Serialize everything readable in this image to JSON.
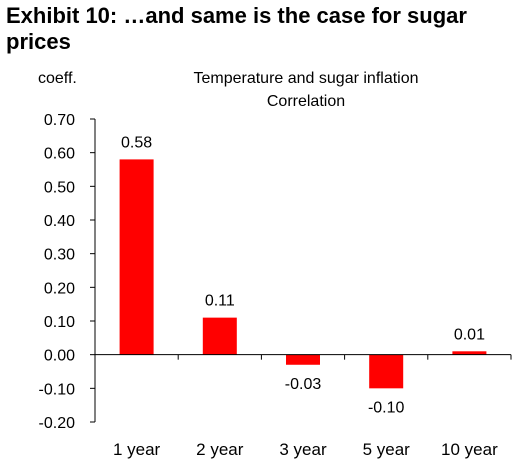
{
  "exhibit_title": "Exhibit 10: …and same is the case for sugar prices",
  "chart_data": {
    "type": "bar",
    "title": "Temperature and sugar inflation",
    "subtitle": "Correlation",
    "ylabel": "coeff.",
    "xlabel": "",
    "categories": [
      "1 year",
      "2 year",
      "3 year",
      "5 year",
      "10 year"
    ],
    "values": [
      0.58,
      0.11,
      -0.03,
      -0.1,
      0.01
    ],
    "data_labels": [
      "0.58",
      "0.11",
      "-0.03",
      "-0.10",
      "0.01"
    ],
    "ylim": [
      -0.2,
      0.7
    ],
    "yticks": [
      "0.70",
      "0.60",
      "0.50",
      "0.40",
      "0.30",
      "0.20",
      "0.10",
      "0.00",
      "-0.10",
      "-0.20"
    ],
    "bar_color": "#ff0000",
    "grid": false,
    "legend": "none"
  }
}
